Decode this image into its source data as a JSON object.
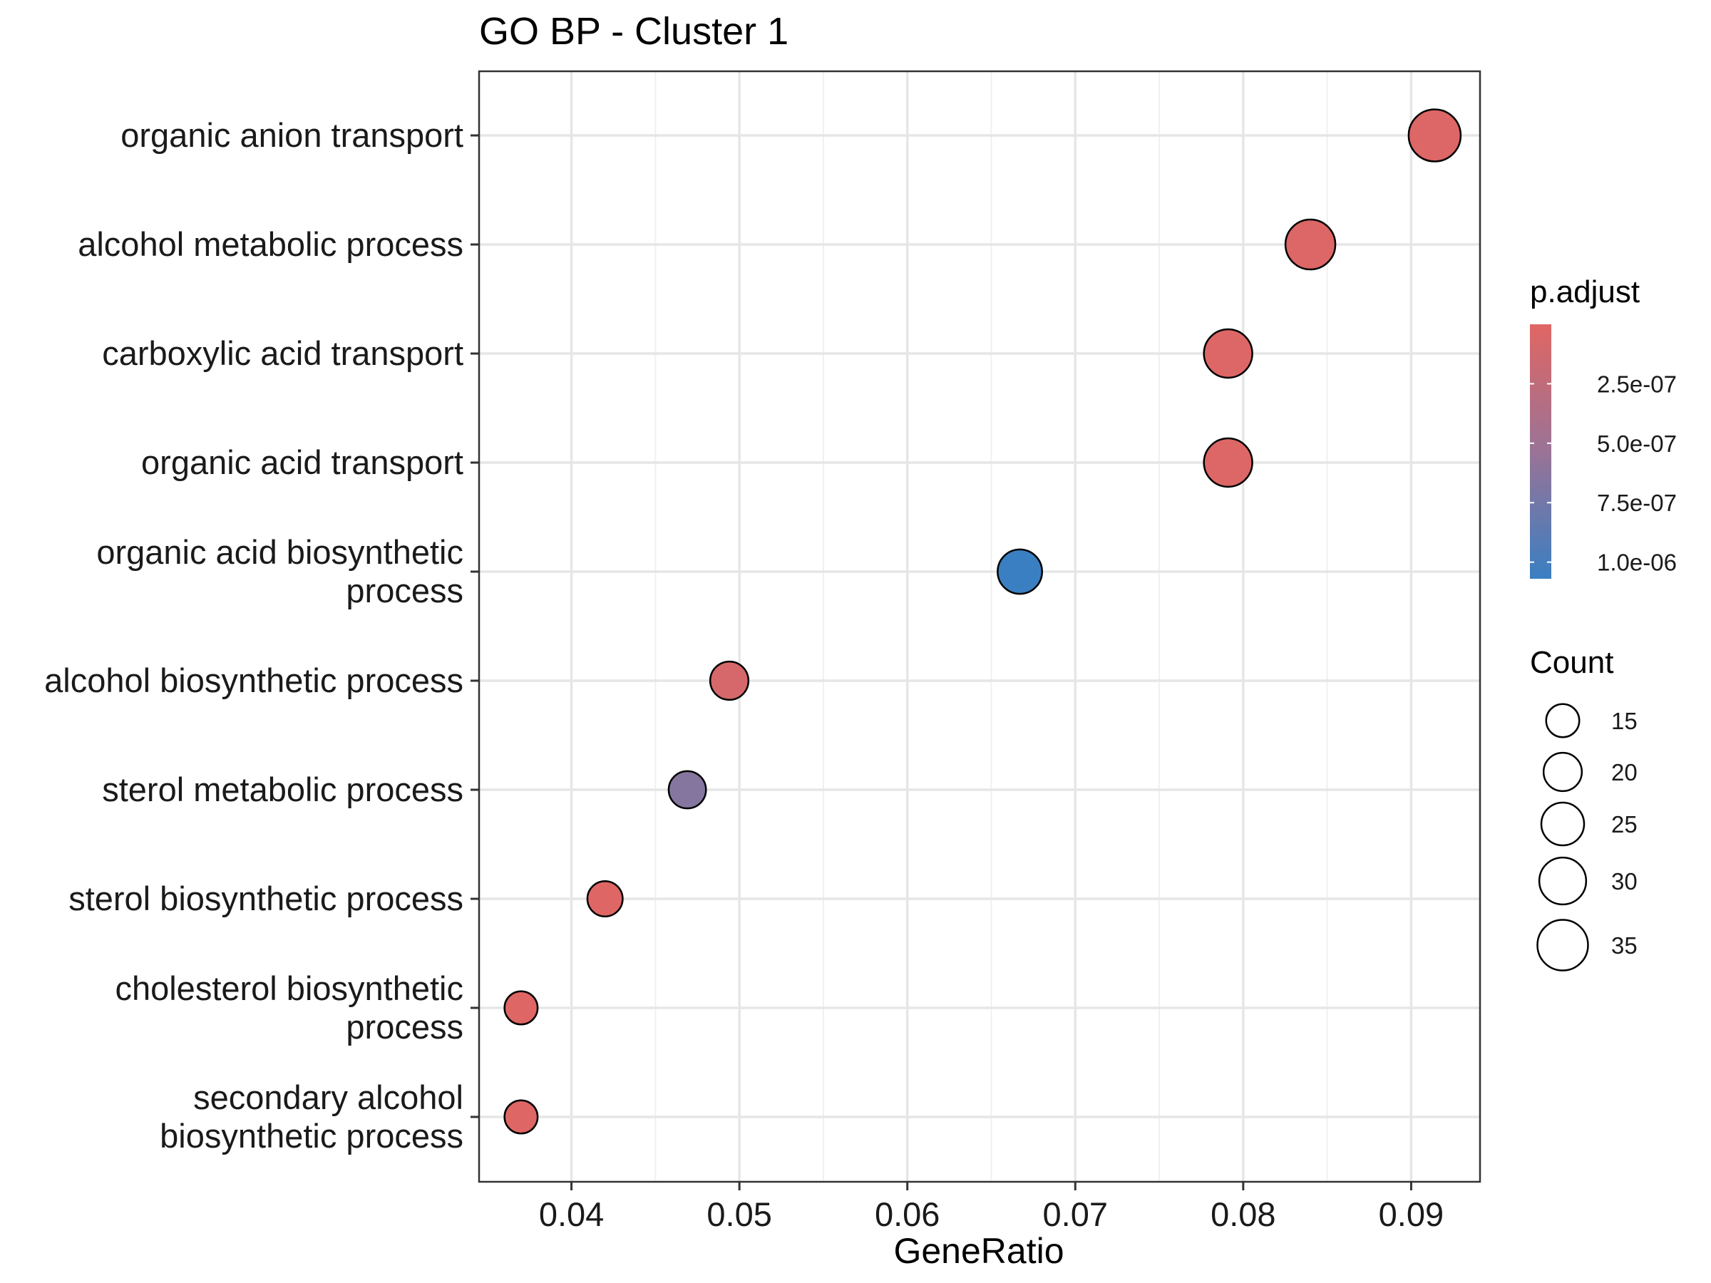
{
  "chart_data": {
    "type": "scatter",
    "title": "GO BP - Cluster 1",
    "xlabel": "GeneRatio",
    "ylabel": "",
    "xlim": [
      0.0345,
      0.0941
    ],
    "x_ticks": [
      0.04,
      0.05,
      0.06,
      0.07,
      0.08,
      0.09
    ],
    "x_tick_labels": [
      "0.04",
      "0.05",
      "0.06",
      "0.07",
      "0.08",
      "0.09"
    ],
    "grid": true,
    "categories": [
      [
        "organic anion transport"
      ],
      [
        "alcohol metabolic process"
      ],
      [
        "carboxylic acid transport"
      ],
      [
        "organic acid transport"
      ],
      [
        "organic acid biosynthetic",
        "process"
      ],
      [
        "alcohol biosynthetic process"
      ],
      [
        "sterol metabolic process"
      ],
      [
        "sterol biosynthetic process"
      ],
      [
        "cholesterol biosynthetic",
        "process"
      ],
      [
        "secondary alcohol",
        "biosynthetic process"
      ]
    ],
    "gene_ratio": [
      0.0914,
      0.084,
      0.0791,
      0.0791,
      0.0667,
      0.0494,
      0.0469,
      0.042,
      0.037,
      0.037
    ],
    "count": [
      37,
      34,
      32,
      32,
      27,
      20,
      19,
      17,
      15,
      15
    ],
    "p_adjust": [
      3e-08,
      3e-08,
      3e-08,
      3e-08,
      1.07e-06,
      8e-08,
      6.5e-07,
      1.5e-08,
      1.5e-08,
      1.5e-08
    ],
    "color_legend": {
      "title": "p.adjust",
      "low_color": "#E06663",
      "mid_color": "#9A7396",
      "high_color": "#3A7FC2",
      "range": [
        0.0,
        1.07e-06
      ],
      "breaks": [
        2.5e-07,
        5e-07,
        7.5e-07,
        1e-06
      ],
      "labels": [
        "2.5e-07",
        "5.0e-07",
        "7.5e-07",
        "1.0e-06"
      ]
    },
    "size_legend": {
      "title": "Count",
      "values": [
        15,
        20,
        25,
        30,
        35
      ],
      "labels": [
        "15",
        "20",
        "25",
        "30",
        "35"
      ]
    },
    "legend_position": "right"
  }
}
